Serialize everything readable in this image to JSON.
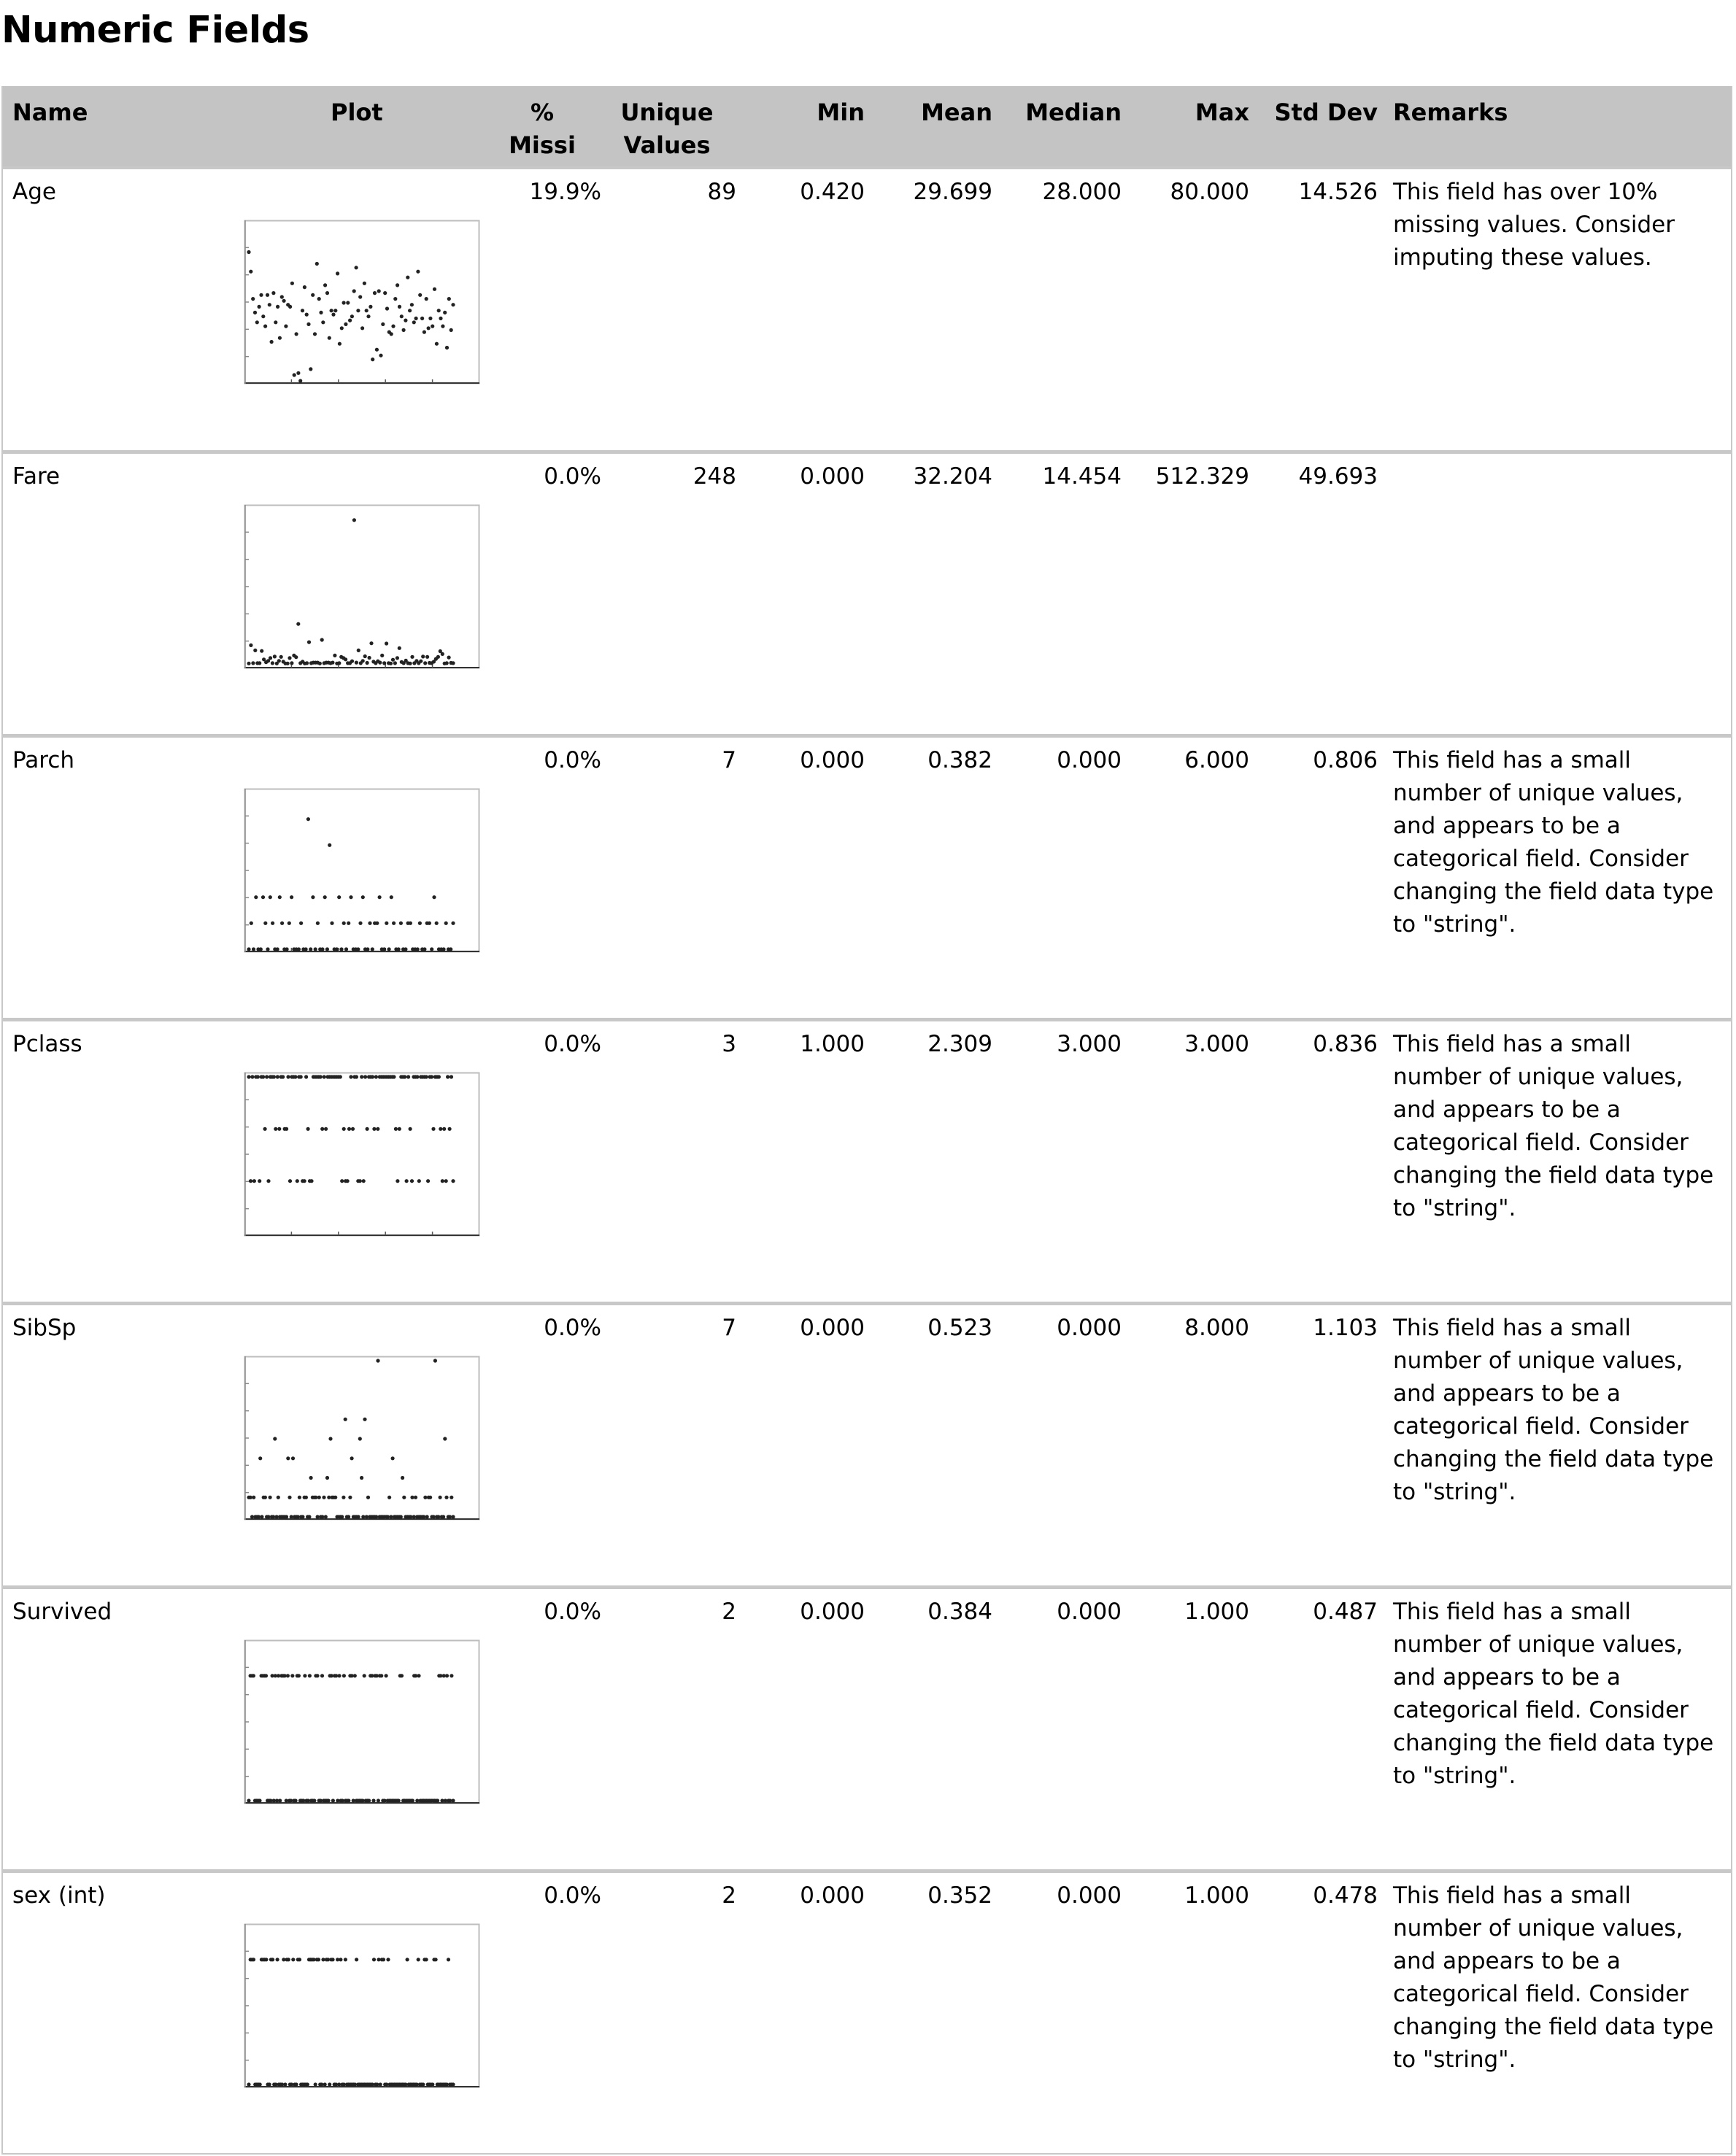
{
  "page_title": "Numeric Fields",
  "columns": {
    "name": "Name",
    "plot": "Plot",
    "missing_line1": "%",
    "missing_line2": "Missi",
    "unique_line1": "Unique",
    "unique_line2": "Values",
    "min": "Min",
    "mean": "Mean",
    "median": "Median",
    "max": "Max",
    "std": "Std Dev",
    "remarks": "Remarks"
  },
  "rows": [
    {
      "name": "Age",
      "missing": "19.9%",
      "unique": "89",
      "min": "0.420",
      "mean": "29.699",
      "median": "28.000",
      "max": "80.000",
      "std": "14.526",
      "remark": "This field has over 10% missing values. Consider imputing these values."
    },
    {
      "name": "Fare",
      "missing": "0.0%",
      "unique": "248",
      "min": "0.000",
      "mean": "32.204",
      "median": "14.454",
      "max": "512.329",
      "std": "49.693",
      "remark": ""
    },
    {
      "name": "Parch",
      "missing": "0.0%",
      "unique": "7",
      "min": "0.000",
      "mean": "0.382",
      "median": "0.000",
      "max": "6.000",
      "std": "0.806",
      "remark": "This field has a small number of unique values, and appears to be a categorical field. Consider changing the field data type to \"string\"."
    },
    {
      "name": "Pclass",
      "missing": "0.0%",
      "unique": "3",
      "min": "1.000",
      "mean": "2.309",
      "median": "3.000",
      "max": "3.000",
      "std": "0.836",
      "remark": "This field has a small number of unique values, and appears to be a categorical field. Consider changing the field data type to \"string\"."
    },
    {
      "name": "SibSp",
      "missing": "0.0%",
      "unique": "7",
      "min": "0.000",
      "mean": "0.523",
      "median": "0.000",
      "max": "8.000",
      "std": "1.103",
      "remark": "This field has a small number of unique values, and appears to be a categorical field. Consider changing the field data type to \"string\"."
    },
    {
      "name": "Survived",
      "missing": "0.0%",
      "unique": "2",
      "min": "0.000",
      "mean": "0.384",
      "median": "0.000",
      "max": "1.000",
      "std": "0.487",
      "remark": "This field has a small number of unique values, and appears to be a categorical field. Consider changing the field data type to \"string\"."
    },
    {
      "name": "sex (int)",
      "missing": "0.0%",
      "unique": "2",
      "min": "0.000",
      "mean": "0.352",
      "median": "0.000",
      "max": "1.000",
      "std": "0.478",
      "remark": "This field has a small number of unique values, and appears to be a categorical field. Consider changing the field data type to \"string\"."
    }
  ],
  "chart_data": [
    {
      "type": "scatter",
      "field": "Age",
      "ylim": [
        0,
        80
      ],
      "point_color": "#222222",
      "y_values": [
        66,
        56,
        42,
        35,
        30,
        38,
        44,
        33,
        28,
        44,
        39,
        20,
        45,
        30,
        38,
        22,
        43,
        41,
        28,
        39,
        38,
        50,
        3,
        24,
        4,
        0,
        36,
        48,
        34,
        29,
        6,
        44,
        24,
        60,
        42,
        35,
        30,
        49,
        45,
        22,
        36,
        34,
        36,
        55,
        19,
        27,
        40,
        29,
        40,
        31,
        33,
        46,
        58,
        36,
        43,
        27,
        50,
        36,
        33,
        38,
        11,
        45,
        16,
        46,
        13,
        29,
        45,
        37,
        25,
        24,
        28,
        42,
        49,
        38,
        33,
        26,
        31,
        53,
        36,
        39,
        30,
        32,
        56,
        44,
        32,
        25,
        42,
        27,
        32,
        28,
        47,
        19,
        36,
        32,
        28,
        35,
        17,
        42,
        26,
        39
      ]
    },
    {
      "type": "scatter",
      "field": "Fare",
      "ylim": [
        0,
        550
      ],
      "point_color": "#222222",
      "y_values": [
        7,
        71,
        8,
        53,
        8,
        8,
        51,
        21,
        11,
        16,
        26,
        8,
        31,
        7,
        16,
        30,
        13,
        7,
        7,
        26,
        8,
        35,
        29,
        146,
        8,
        13,
        7,
        8,
        82,
        8,
        10,
        10,
        10,
        7,
        90,
        8,
        10,
        10,
        8,
        10,
        35,
        7,
        8,
        30,
        26,
        21,
        8,
        8,
        15,
        512,
        10,
        53,
        8,
        16,
        32,
        9,
        27,
        78,
        13,
        8,
        15,
        10,
        35,
        8,
        77,
        8,
        7,
        20,
        8,
        26,
        61,
        12,
        8,
        17,
        8,
        7,
        30,
        8,
        16,
        8,
        15,
        31,
        8,
        30,
        9,
        8,
        13,
        23,
        30,
        50,
        40,
        7,
        8,
        28,
        9,
        8
      ]
    },
    {
      "type": "scatter",
      "field": "Parch",
      "ylim": [
        0,
        6
      ],
      "point_color": "#222222",
      "y_values": [
        0,
        1,
        0,
        2,
        0,
        0,
        2,
        1,
        0,
        2,
        1,
        0,
        0,
        2,
        1,
        0,
        0,
        1,
        2,
        0,
        0,
        0,
        1,
        0,
        0,
        5,
        0,
        2,
        0,
        1,
        0,
        0,
        2,
        0,
        4,
        1,
        0,
        0,
        2,
        0,
        1,
        0,
        1,
        2,
        0,
        0,
        0,
        1,
        2,
        0,
        0,
        1,
        0,
        1,
        1,
        2,
        0,
        0,
        1,
        0,
        2,
        1,
        0,
        0,
        1,
        0,
        0,
        1,
        1,
        0,
        0,
        0,
        1,
        0,
        0,
        1,
        1,
        0,
        2,
        1,
        0,
        0,
        0,
        1,
        0,
        0,
        1
      ]
    },
    {
      "type": "scatter",
      "field": "Pclass",
      "ylim": [
        0,
        3
      ],
      "point_color": "#222222",
      "y_values": [
        3,
        1,
        3,
        1,
        3,
        3,
        1,
        3,
        3,
        2,
        3,
        1,
        3,
        3,
        3,
        2,
        3,
        2,
        3,
        3,
        2,
        2,
        3,
        1,
        3,
        3,
        3,
        1,
        3,
        3,
        1,
        1,
        3,
        2,
        1,
        1,
        3,
        3,
        3,
        3,
        3,
        2,
        3,
        2,
        3,
        3,
        3,
        3,
        3,
        3,
        3,
        3,
        1,
        2,
        1,
        1,
        2,
        3,
        2,
        3,
        3,
        1,
        1,
        3,
        1,
        3,
        2,
        3,
        3,
        3,
        2,
        3,
        2,
        3,
        3,
        3,
        3,
        3,
        3,
        3,
        3,
        3,
        2,
        1,
        2,
        3,
        3,
        3,
        1,
        3,
        2,
        1,
        3,
        3,
        3,
        1,
        3,
        3,
        3,
        3,
        1,
        3,
        3,
        2,
        3,
        3,
        3,
        2,
        1,
        2,
        1,
        3,
        2,
        3,
        1
      ]
    },
    {
      "type": "scatter",
      "field": "SibSp",
      "ylim": [
        0,
        8
      ],
      "point_color": "#222222",
      "y_values": [
        1,
        1,
        0,
        1,
        0,
        0,
        0,
        3,
        0,
        1,
        1,
        0,
        0,
        1,
        0,
        0,
        4,
        0,
        1,
        0,
        0,
        0,
        0,
        0,
        3,
        1,
        0,
        3,
        0,
        0,
        0,
        1,
        0,
        0,
        1,
        1,
        0,
        0,
        2,
        1,
        1,
        1,
        0,
        1,
        0,
        0,
        1,
        0,
        2,
        1,
        4,
        1,
        1,
        1,
        0,
        0,
        0,
        0,
        1,
        5,
        0,
        0,
        1,
        3,
        0,
        0,
        0,
        0,
        4,
        2,
        0,
        5,
        0,
        1,
        0,
        0,
        0,
        0,
        0,
        8,
        0,
        0,
        0,
        0,
        0,
        0,
        1,
        0,
        3,
        0,
        0,
        0,
        0,
        0,
        2,
        1,
        0,
        0,
        0,
        0,
        1,
        0,
        1,
        0,
        0,
        0,
        0,
        0,
        1,
        0,
        1,
        1,
        0,
        0,
        8,
        0,
        0,
        1,
        0,
        0,
        4,
        1,
        0,
        0,
        1,
        0
      ]
    },
    {
      "type": "scatter",
      "field": "Survived",
      "ylim": [
        0,
        1.25
      ],
      "point_color": "#222222",
      "y_values": [
        0,
        1,
        1,
        1,
        0,
        0,
        0,
        0,
        1,
        1,
        1,
        1,
        0,
        0,
        0,
        1,
        0,
        1,
        0,
        1,
        0,
        1,
        1,
        1,
        0,
        1,
        0,
        0,
        1,
        0,
        0,
        1,
        1,
        0,
        0,
        0,
        1,
        0,
        0,
        1,
        0,
        0,
        0,
        1,
        1,
        0,
        0,
        1,
        0,
        0,
        0,
        0,
        1,
        1,
        0,
        1,
        1,
        0,
        1,
        0,
        0,
        1,
        0,
        0,
        0,
        1,
        1,
        0,
        1,
        0,
        0,
        0,
        0,
        0,
        1,
        0,
        0,
        0,
        1,
        1,
        0,
        1,
        1,
        0,
        1,
        1,
        0,
        0,
        1,
        0,
        0,
        0,
        0,
        0,
        0,
        0,
        0,
        1,
        1,
        0,
        0,
        0,
        0,
        0,
        0,
        0,
        1,
        1,
        0,
        1,
        0,
        0,
        0,
        0,
        0,
        0,
        0,
        0,
        0,
        0,
        0,
        0,
        1,
        1,
        0,
        1,
        0,
        1,
        0,
        0,
        1,
        0
      ]
    },
    {
      "type": "scatter",
      "field": "sex (int)",
      "ylim": [
        0,
        1.25
      ],
      "point_color": "#222222",
      "y_values": [
        0,
        1,
        1,
        1,
        0,
        0,
        0,
        0,
        1,
        1,
        1,
        1,
        0,
        0,
        1,
        1,
        0,
        0,
        1,
        0,
        0,
        0,
        1,
        0,
        1,
        1,
        0,
        0,
        1,
        0,
        0,
        1,
        1,
        0,
        0,
        0,
        0,
        0,
        1,
        1,
        1,
        1,
        0,
        1,
        1,
        0,
        0,
        1,
        0,
        1,
        1,
        0,
        1,
        1,
        0,
        0,
        1,
        0,
        1,
        0,
        0,
        1,
        0,
        0,
        0,
        0,
        0,
        0,
        1,
        0,
        0,
        0,
        0,
        0,
        0,
        0,
        0,
        0,
        0,
        1,
        0,
        0,
        1,
        0,
        1,
        1,
        0,
        0,
        1,
        0,
        0,
        0,
        0,
        0,
        0,
        0,
        0,
        0,
        0,
        0,
        1,
        0,
        0,
        0,
        0,
        0,
        0,
        1,
        0,
        0,
        0,
        1,
        1,
        0,
        0,
        0,
        0,
        1,
        1,
        0,
        0,
        0,
        0,
        0,
        0,
        0,
        1,
        0,
        0,
        0
      ]
    }
  ]
}
